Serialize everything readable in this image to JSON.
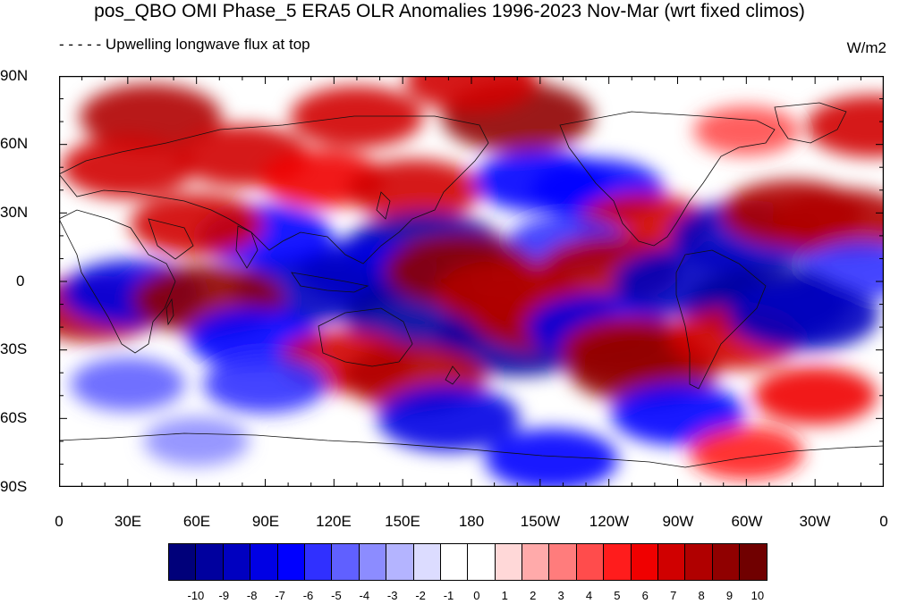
{
  "title": "pos_QBO OMI Phase_5 ERA5 OLR Anomalies 1996-2023 Nov-Mar (wrt fixed climos)",
  "subtitle": "- - - - - Upwelling longwave flux at top",
  "units": "W/m2",
  "lat_labels": [
    "90N",
    "60N",
    "30N",
    "0",
    "30S",
    "60S",
    "90S"
  ],
  "lon_labels": [
    "0",
    "30E",
    "60E",
    "90E",
    "120E",
    "150E",
    "180",
    "150W",
    "120W",
    "90W",
    "60W",
    "30W",
    "0"
  ],
  "colorbar": {
    "labels": [
      "-10",
      "-9",
      "-8",
      "-7",
      "-6",
      "-5",
      "-4",
      "-3",
      "-2",
      "-1",
      "0",
      "1",
      "2",
      "3",
      "4",
      "5",
      "6",
      "7",
      "8",
      "9",
      "10"
    ],
    "colors": [
      "#00007a",
      "#00009e",
      "#0000c0",
      "#0000e4",
      "#0000ff",
      "#3030ff",
      "#6060ff",
      "#8c8cff",
      "#b4b4ff",
      "#dcdcff",
      "#ffffff",
      "#ffffff",
      "#ffd8d8",
      "#ffaaaa",
      "#ff7c7c",
      "#ff4c4c",
      "#ff1c1c",
      "#f00000",
      "#d00000",
      "#b00000",
      "#900000",
      "#700000"
    ]
  },
  "map_data": {
    "projection": "cylindrical-equidistant",
    "lon_range": [
      0,
      360
    ],
    "lat_range": [
      -90,
      90
    ],
    "anomalies_wm2": [
      {
        "lon": 200,
        "lat": 72,
        "value": 9
      },
      {
        "lon": 40,
        "lat": 72,
        "value": 8
      },
      {
        "lon": 130,
        "lat": 72,
        "value": 7
      },
      {
        "lon": 180,
        "lat": 88,
        "value": 7
      },
      {
        "lon": 355,
        "lat": 68,
        "value": 7
      },
      {
        "lon": 300,
        "lat": 66,
        "value": 4
      },
      {
        "lon": 80,
        "lat": 55,
        "value": 7
      },
      {
        "lon": 30,
        "lat": 50,
        "value": 7
      },
      {
        "lon": 115,
        "lat": 45,
        "value": 6
      },
      {
        "lon": 155,
        "lat": 40,
        "value": 7
      },
      {
        "lon": 210,
        "lat": 44,
        "value": -7
      },
      {
        "lon": 235,
        "lat": 40,
        "value": -7
      },
      {
        "lon": 255,
        "lat": 25,
        "value": 7
      },
      {
        "lon": 222,
        "lat": 16,
        "value": -6
      },
      {
        "lon": 240,
        "lat": 5,
        "value": 8
      },
      {
        "lon": 300,
        "lat": 20,
        "value": -9
      },
      {
        "lon": 320,
        "lat": 30,
        "value": 8
      },
      {
        "lon": 342,
        "lat": 26,
        "value": 8
      },
      {
        "lon": 350,
        "lat": 5,
        "value": -6
      },
      {
        "lon": 160,
        "lat": 14,
        "value": -10
      },
      {
        "lon": 135,
        "lat": 5,
        "value": -8
      },
      {
        "lon": 110,
        "lat": -3,
        "value": -9
      },
      {
        "lon": 160,
        "lat": -15,
        "value": -10
      },
      {
        "lon": 200,
        "lat": -25,
        "value": -10
      },
      {
        "lon": 175,
        "lat": 5,
        "value": 9
      },
      {
        "lon": 195,
        "lat": -5,
        "value": 8
      },
      {
        "lon": 210,
        "lat": -15,
        "value": 8
      },
      {
        "lon": 235,
        "lat": -20,
        "value": -8
      },
      {
        "lon": 250,
        "lat": -30,
        "value": 8
      },
      {
        "lon": 255,
        "lat": -38,
        "value": 9
      },
      {
        "lon": 275,
        "lat": 0,
        "value": -9
      },
      {
        "lon": 310,
        "lat": -10,
        "value": -10
      },
      {
        "lon": 295,
        "lat": -25,
        "value": 7
      },
      {
        "lon": 325,
        "lat": -15,
        "value": -9
      },
      {
        "lon": 15,
        "lat": -12,
        "value": 8
      },
      {
        "lon": 32,
        "lat": -5,
        "value": -8
      },
      {
        "lon": 65,
        "lat": -8,
        "value": 9
      },
      {
        "lon": 90,
        "lat": 20,
        "value": -7
      },
      {
        "lon": 60,
        "lat": 25,
        "value": 7
      },
      {
        "lon": 85,
        "lat": -25,
        "value": -7
      },
      {
        "lon": 125,
        "lat": -35,
        "value": 7
      },
      {
        "lon": 155,
        "lat": -42,
        "value": 8
      },
      {
        "lon": 90,
        "lat": -45,
        "value": -6
      },
      {
        "lon": 170,
        "lat": -60,
        "value": -8
      },
      {
        "lon": 270,
        "lat": -58,
        "value": -7
      },
      {
        "lon": 330,
        "lat": -50,
        "value": 6
      },
      {
        "lon": 215,
        "lat": -78,
        "value": -7
      },
      {
        "lon": 30,
        "lat": -45,
        "value": -5
      },
      {
        "lon": 60,
        "lat": -70,
        "value": -4
      },
      {
        "lon": 300,
        "lat": -75,
        "value": 5
      }
    ]
  }
}
